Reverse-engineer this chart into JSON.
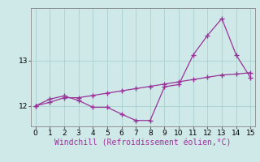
{
  "xlabel": "Windchill (Refroidissement éolien,°C)",
  "ylabel": "",
  "bg_color": "#cfe8e8",
  "line1_x": [
    0,
    1,
    2,
    3,
    4,
    5,
    6,
    7,
    8,
    9,
    10,
    11,
    12,
    13,
    14,
    15
  ],
  "line1_y": [
    12.0,
    12.15,
    12.22,
    12.12,
    11.97,
    11.97,
    11.82,
    11.68,
    11.68,
    12.42,
    12.47,
    13.12,
    13.55,
    13.92,
    13.12,
    12.62
  ],
  "line2_x": [
    0,
    1,
    2,
    3,
    4,
    5,
    6,
    7,
    8,
    9,
    10,
    11,
    12,
    13,
    14,
    15
  ],
  "line2_y": [
    12.0,
    12.08,
    12.18,
    12.18,
    12.23,
    12.28,
    12.33,
    12.38,
    12.43,
    12.48,
    12.53,
    12.58,
    12.63,
    12.68,
    12.7,
    12.73
  ],
  "line_color": "#993399",
  "marker": "+",
  "markersize": 4,
  "linewidth": 0.9,
  "xlim": [
    -0.3,
    15.3
  ],
  "ylim": [
    11.55,
    14.15
  ],
  "yticks": [
    12,
    13
  ],
  "xticks": [
    0,
    1,
    2,
    3,
    4,
    5,
    6,
    7,
    8,
    9,
    10,
    11,
    12,
    13,
    14,
    15
  ],
  "grid_color": "#aacfcf",
  "tick_fontsize": 6.5,
  "xlabel_fontsize": 7.0,
  "tick_color": "#666666"
}
